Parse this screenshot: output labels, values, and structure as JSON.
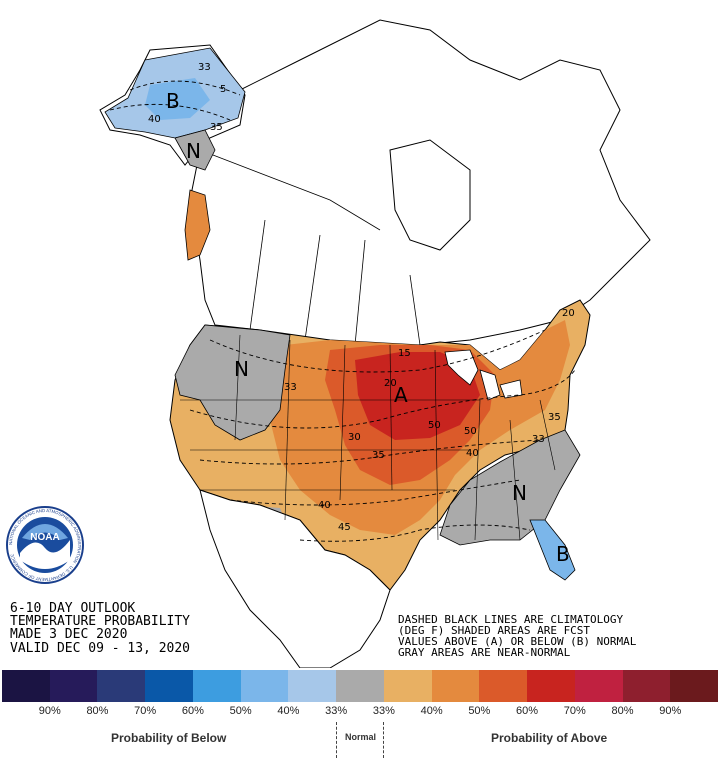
{
  "title_block": {
    "line1": "6-10 DAY OUTLOOK",
    "line2": "TEMPERATURE PROBABILITY",
    "line3": "MADE  3 DEC 2020",
    "line4": "VALID  DEC 09 - 13, 2020"
  },
  "notes": {
    "line1": "DASHED BLACK LINES ARE CLIMATOLOGY",
    "line2": "(DEG F) SHADED AREAS ARE FCST",
    "line3": "VALUES ABOVE (A) OR BELOW (B) NORMAL",
    "line4": "GRAY AREAS ARE NEAR-NORMAL"
  },
  "logo": {
    "text": "NOAA",
    "ring_text": "NATIONAL OCEANIC AND ATMOSPHERIC ADMINISTRATION · U.S. DEPARTMENT OF COMMERCE"
  },
  "region_labels": {
    "alaska_b": "B",
    "alaska_n": "N",
    "west_n": "N",
    "center_a": "A",
    "southeast_n": "N",
    "florida_b": "B"
  },
  "contour_labels": [
    "33",
    "5",
    "40",
    "35",
    "33",
    "15",
    "20",
    "30",
    "50",
    "50",
    "35",
    "40",
    "40",
    "45",
    "33",
    "20",
    "35"
  ],
  "legend": {
    "colors": [
      "#1b1443",
      "#261b5a",
      "#2a3a78",
      "#0a58a8",
      "#3d9de0",
      "#7bb6ea",
      "#a6c7e9",
      "#aaaaaa",
      "#e8b063",
      "#e48a3e",
      "#db5a2a",
      "#c8241f",
      "#c02140",
      "#8e1f2e",
      "#6b1a1d"
    ],
    "ticks": [
      "90%",
      "80%",
      "70%",
      "60%",
      "50%",
      "40%",
      "33%",
      "33%",
      "40%",
      "50%",
      "60%",
      "70%",
      "80%",
      "90%"
    ],
    "below_label": "Probability of Below",
    "normal_label": "Normal",
    "above_label": "Probability of Above"
  }
}
